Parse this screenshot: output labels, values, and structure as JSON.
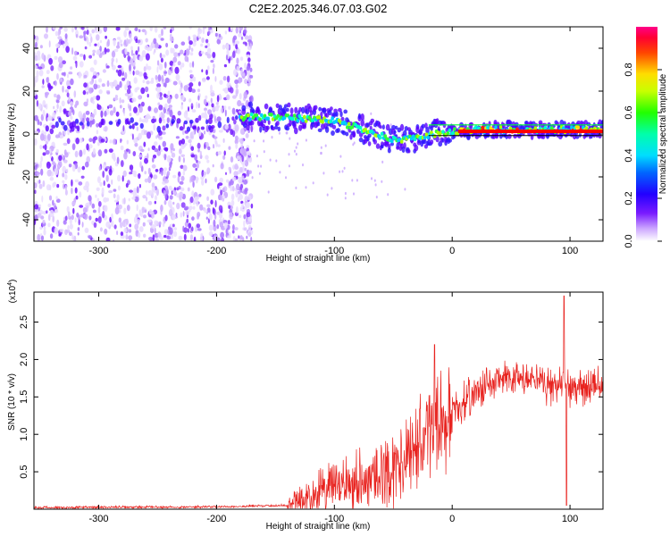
{
  "title": "C2E2.2025.346.07.03.G02",
  "colors": {
    "snr_line": "#e8231f",
    "spectral_purple": "#6a0aff",
    "trace_red": "#ff0000",
    "trace_green": "#00ff33"
  },
  "chart_data": [
    {
      "type": "heatmap",
      "name": "spectrogram",
      "xlabel": "Height of straight line (km)",
      "ylabel": "Frequency (Hz)",
      "xlim": [
        -355,
        128
      ],
      "ylim": [
        -50,
        50
      ],
      "xticks": [
        -300,
        -200,
        -100,
        0,
        100
      ],
      "yticks": [
        -40,
        -20,
        0,
        20,
        40
      ],
      "colorbar": {
        "label": "Normalized spectral amplitude",
        "range": [
          0,
          1
        ],
        "ticks": [
          "0.0",
          "0.2",
          "0.4",
          "0.6",
          "0.8"
        ],
        "tick_values": [
          0.0,
          0.2,
          0.4,
          0.6,
          0.8
        ]
      },
      "noise_region_x": [
        -355,
        -170
      ],
      "signal_track": [
        {
          "x": -340,
          "f": 4
        },
        {
          "x": -300,
          "f": 4
        },
        {
          "x": -250,
          "f": 4
        },
        {
          "x": -200,
          "f": 4
        },
        {
          "x": -175,
          "f": 8
        },
        {
          "x": -150,
          "f": 8
        },
        {
          "x": -120,
          "f": 7
        },
        {
          "x": -100,
          "f": 6
        },
        {
          "x": -80,
          "f": 3
        },
        {
          "x": -60,
          "f": -1
        },
        {
          "x": -45,
          "f": -3
        },
        {
          "x": -30,
          "f": -2
        },
        {
          "x": -15,
          "f": 0
        },
        {
          "x": 0,
          "f": 1
        },
        {
          "x": 20,
          "f": 2
        },
        {
          "x": 50,
          "f": 2
        },
        {
          "x": 95,
          "f": 2
        },
        {
          "x": 128,
          "f": 2
        }
      ]
    },
    {
      "type": "line",
      "name": "snr",
      "xlabel": "Height of straight line (km)",
      "ylabel": "SNR (10 * v/v)",
      "scale_label": "(x10",
      "scale_exponent": "4",
      "scale_suffix": ")",
      "xlim": [
        -355,
        128
      ],
      "ylim": [
        0,
        2.9
      ],
      "xticks": [
        -300,
        -200,
        -100,
        0,
        100
      ],
      "yticks": [
        0.5,
        1.0,
        1.5,
        2.0,
        2.5
      ],
      "ytick_labels": [
        "0.5",
        "1.0",
        "1.5",
        "2.0",
        "2.5"
      ],
      "envelope": {
        "x": [
          -355,
          -200,
          -140,
          -120,
          -100,
          -80,
          -60,
          -40,
          -30,
          -20,
          -15,
          -10,
          0,
          20,
          40,
          60,
          80,
          90,
          95,
          100,
          110,
          128
        ],
        "y": [
          0.02,
          0.03,
          0.05,
          0.15,
          0.28,
          0.35,
          0.42,
          0.55,
          0.75,
          1.05,
          1.1,
          1.05,
          1.25,
          1.55,
          1.7,
          1.72,
          1.65,
          1.6,
          1.8,
          1.55,
          1.6,
          1.62
        ]
      },
      "spikes": [
        {
          "x": -15,
          "y": 2.2
        },
        {
          "x": 95,
          "y": 2.85
        },
        {
          "x": 97,
          "y": 0.05
        }
      ]
    }
  ]
}
